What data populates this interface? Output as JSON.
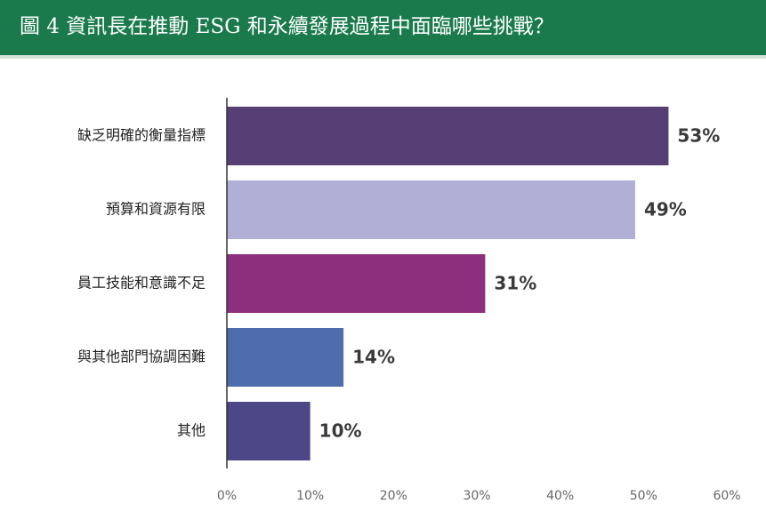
{
  "chart_data": {
    "type": "bar",
    "orientation": "horizontal",
    "title": "圖 4 資訊長在推動 ESG 和永續發展過程中面臨哪些挑戰？",
    "categories": [
      "缺乏明確的衡量指標",
      "預算和資源有限",
      "員工技能和意識不足",
      "與其他部門協調困難",
      "其他"
    ],
    "values": [
      53,
      49,
      31,
      14,
      10
    ],
    "value_labels": [
      "53%",
      "49%",
      "31%",
      "14%",
      "10%"
    ],
    "colors": [
      "#553f75",
      "#b2afd6",
      "#8d2f7d",
      "#4f6dac",
      "#4d4787"
    ],
    "xlim": [
      0,
      60
    ],
    "xticks": [
      {
        "value": 0,
        "label": "0%"
      },
      {
        "value": 10,
        "label": "10%"
      },
      {
        "value": 20,
        "label": "20%"
      },
      {
        "value": 30,
        "label": "30%"
      },
      {
        "value": 40,
        "label": "40%"
      },
      {
        "value": 50,
        "label": "50%"
      },
      {
        "value": 60,
        "label": "60%"
      }
    ],
    "grid": false
  }
}
